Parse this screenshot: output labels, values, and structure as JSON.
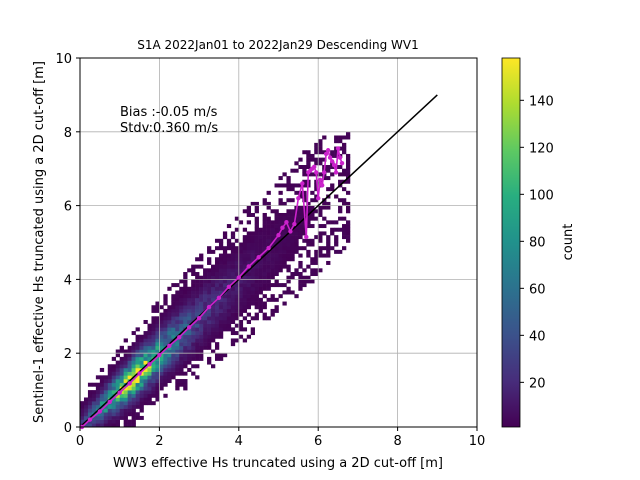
{
  "chart_data": {
    "type": "heatmap",
    "title": "S1A 2022Jan01 to 2022Jan29 Descending WV1",
    "xlabel": "WW3 effective Hs truncated using a 2D cut-off [m]",
    "ylabel": "Sentinel-1 effective Hs truncated using a 2D cut-off [m]",
    "xlim": [
      0,
      10
    ],
    "ylim": [
      0,
      10
    ],
    "xticks": [
      "0",
      "2",
      "4",
      "6",
      "8",
      "10"
    ],
    "yticks": [
      "0",
      "2",
      "4",
      "6",
      "8",
      "10"
    ],
    "grid": true,
    "bin_size_m": 0.1,
    "annotations": [
      "Bias :-0.05 m/s",
      "Stdv:0.360 m/s"
    ],
    "colorbar": {
      "label": "count",
      "range": [
        1,
        158
      ],
      "ticks": [
        "20",
        "40",
        "60",
        "80",
        "100",
        "120",
        "140"
      ],
      "colormap": "viridis"
    },
    "series": [
      {
        "kind": "reference_line",
        "color": "#000000",
        "x": [
          0,
          9
        ],
        "y": [
          0,
          9
        ]
      },
      {
        "kind": "binned_mean",
        "color": "#cc22cc",
        "x": [
          0.05,
          0.25,
          0.5,
          0.75,
          1.0,
          1.25,
          1.5,
          1.75,
          2.0,
          2.25,
          2.5,
          2.75,
          3.0,
          3.25,
          3.5,
          3.75,
          4.0,
          4.25,
          4.5,
          4.75,
          5.0,
          5.1,
          5.2,
          5.3,
          5.4,
          5.5,
          5.6,
          5.7,
          5.75,
          5.8,
          5.85,
          5.9,
          5.95,
          6.0,
          6.05,
          6.1,
          6.15,
          6.2,
          6.25,
          6.3,
          6.35,
          6.4,
          6.45,
          6.5,
          6.55,
          6.6
        ],
        "y": [
          0.0,
          0.2,
          0.42,
          0.68,
          0.93,
          1.18,
          1.45,
          1.7,
          1.95,
          2.2,
          2.43,
          2.7,
          2.95,
          3.25,
          3.5,
          3.8,
          4.05,
          4.35,
          4.6,
          4.85,
          5.2,
          5.4,
          5.55,
          5.3,
          5.5,
          6.2,
          6.6,
          5.15,
          6.9,
          6.95,
          7.0,
          7.05,
          6.9,
          6.2,
          6.7,
          6.55,
          6.9,
          7.4,
          7.5,
          7.3,
          7.2,
          7.1,
          6.9,
          7.55,
          7.3,
          7.15
        ]
      }
    ]
  }
}
